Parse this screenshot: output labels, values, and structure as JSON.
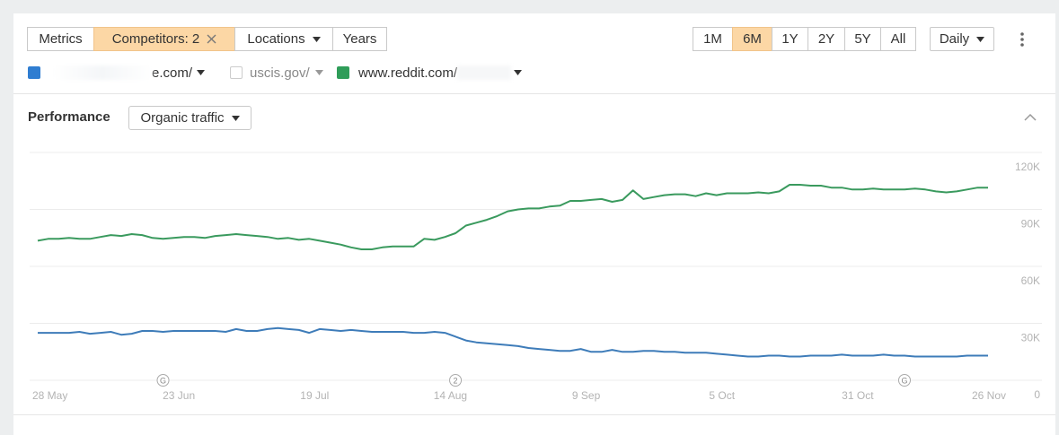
{
  "toolbar": {
    "buttons": [
      "Metrics",
      "Competitors: 2",
      "Locations",
      "Years"
    ],
    "ranges": [
      "1M",
      "6M",
      "1Y",
      "2Y",
      "5Y",
      "All"
    ],
    "selected": "6M",
    "interval": "Daily"
  },
  "compare": {
    "other": "uscis.gov/"
  },
  "section": {
    "title": "Performance",
    "metric": "Organic traffic"
  },
  "chart_data": {
    "type": "line",
    "x": [
      "28 May",
      "30 May",
      "1 Jun",
      "3 Jun",
      "5 Jun",
      "7 Jun",
      "9 Jun",
      "11 Jun",
      "13 Jun",
      "15 Jun",
      "17 Jun",
      "19 Jun",
      "21 Jun",
      "23 Jun",
      "25 Jun",
      "27 Jun",
      "29 Jun",
      "1 Jul",
      "3 Jul",
      "5 Jul",
      "7 Jul",
      "9 Jul",
      "11 Jul",
      "13 Jul",
      "15 Jul",
      "17 Jul",
      "19 Jul",
      "21 Jul",
      "23 Jul",
      "25 Jul",
      "27 Jul",
      "29 Jul",
      "31 Jul",
      "2 Aug",
      "4 Aug",
      "6 Aug",
      "8 Aug",
      "10 Aug",
      "12 Aug",
      "14 Aug",
      "16 Aug",
      "18 Aug",
      "20 Aug",
      "22 Aug",
      "24 Aug",
      "26 Aug",
      "28 Aug",
      "30 Aug",
      "1 Sep",
      "3 Sep",
      "5 Sep",
      "7 Sep",
      "9 Sep",
      "11 Sep",
      "13 Sep",
      "15 Sep",
      "17 Sep",
      "19 Sep",
      "21 Sep",
      "23 Sep",
      "25 Sep",
      "27 Sep",
      "29 Sep",
      "1 Oct",
      "3 Oct",
      "5 Oct",
      "7 Oct",
      "9 Oct",
      "11 Oct",
      "13 Oct",
      "15 Oct",
      "17 Oct",
      "19 Oct",
      "21 Oct",
      "23 Oct",
      "25 Oct",
      "27 Oct",
      "29 Oct",
      "31 Oct",
      "2 Nov",
      "4 Nov",
      "6 Nov",
      "8 Nov",
      "10 Nov",
      "12 Nov",
      "14 Nov",
      "16 Nov",
      "18 Nov",
      "20 Nov",
      "22 Nov",
      "24 Nov",
      "26 Nov"
    ],
    "xticks": [
      "28 May",
      "23 Jun",
      "19 Jul",
      "14 Aug",
      "9 Sep",
      "5 Oct",
      "31 Oct",
      "26 Nov"
    ],
    "ylim": [
      0,
      120000
    ],
    "yticks": [
      0,
      {
        "value": 30000,
        "label": "30K"
      },
      {
        "value": 60000,
        "label": "60K"
      },
      {
        "value": 90000,
        "label": "90K"
      },
      {
        "value": 120000,
        "label": "120K"
      }
    ],
    "grid": true,
    "series": [
      {
        "name": "e.com/",
        "color": "#3e7cb9",
        "values": [
          25000,
          25000,
          25000,
          25000,
          25500,
          24500,
          25000,
          25500,
          24000,
          24500,
          26000,
          26000,
          25500,
          26000,
          26000,
          26000,
          26000,
          26000,
          25500,
          27000,
          26000,
          26000,
          27000,
          27500,
          27000,
          26500,
          25000,
          27000,
          26500,
          26000,
          26500,
          26000,
          25500,
          25500,
          25500,
          25500,
          25000,
          25000,
          25500,
          25000,
          23000,
          21000,
          20000,
          19500,
          19000,
          18500,
          18000,
          17000,
          16500,
          16000,
          15500,
          15500,
          16500,
          15000,
          15000,
          16000,
          15000,
          15000,
          15500,
          15500,
          15000,
          15000,
          14500,
          14500,
          14500,
          14000,
          13500,
          13000,
          12500,
          12500,
          13000,
          13000,
          12500,
          12500,
          13000,
          13000,
          13000,
          13500,
          13000,
          13000,
          13000,
          13500,
          13000,
          13000,
          12500,
          12500,
          12500,
          12500,
          12500,
          13000,
          13000,
          13000
        ]
      },
      {
        "name": "www.reddit.com/",
        "color": "#3a9a5e",
        "values": [
          73500,
          74500,
          74500,
          75000,
          74500,
          74500,
          75500,
          76500,
          76000,
          77000,
          76500,
          75000,
          74500,
          75000,
          75500,
          75500,
          75000,
          76000,
          76500,
          77000,
          76500,
          76000,
          75500,
          74500,
          75000,
          74000,
          74500,
          73500,
          72500,
          71500,
          70000,
          69000,
          69000,
          70000,
          70500,
          70500,
          70500,
          74500,
          74000,
          75500,
          77500,
          81500,
          83000,
          84500,
          86500,
          89000,
          90000,
          90500,
          90500,
          91500,
          92000,
          94500,
          94500,
          95000,
          95500,
          94000,
          95000,
          100000,
          95500,
          96500,
          97500,
          98000,
          98000,
          97000,
          98500,
          97500,
          98500,
          98500,
          98500,
          99000,
          98500,
          99500,
          103000,
          103000,
          102500,
          102500,
          101500,
          101500,
          100500,
          100500,
          101000,
          100500,
          100500,
          100500,
          101000,
          100500,
          99500,
          99000,
          99500,
          100500,
          101500,
          101500
        ]
      }
    ],
    "annotations": [
      {
        "x": "21 Jun",
        "label": "G"
      },
      {
        "x": "16 Aug",
        "label": "2"
      },
      {
        "x": "10 Nov",
        "label": "G"
      }
    ]
  }
}
